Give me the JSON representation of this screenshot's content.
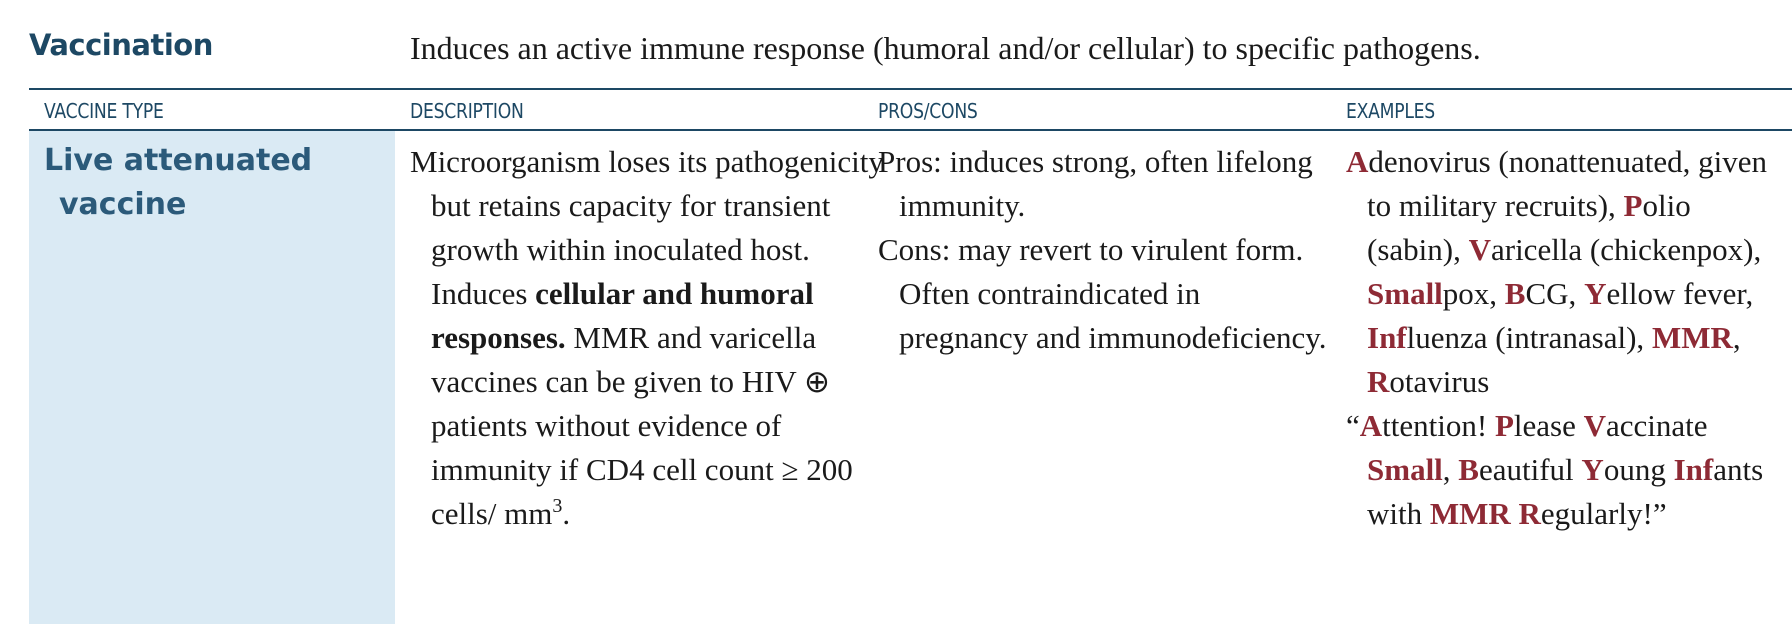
{
  "header": {
    "title": "Vaccination",
    "description": "Induces an active immune response (humoral and/or cellular) to specific pathogens."
  },
  "columns": {
    "type": "VACCINE TYPE",
    "description": "DESCRIPTION",
    "pros_cons": "PROS/CONS",
    "examples": "EXAMPLES"
  },
  "row": {
    "type": "Live attenuated vaccine",
    "description": {
      "part1": "Microorganism loses its pathogenicity but retains capacity for transient growth within inoculated host. Induces ",
      "bold": "cellular and humoral responses.",
      "part2": " MMR and varicella vaccines can be given to HIV ⊕ patients without evidence of immunity if CD4 cell count ≥ 200 cells/ mm",
      "sup": "3",
      "end": "."
    },
    "pros": "Pros: induces strong, often lifelong immunity.",
    "cons": "Cons: may revert to virulent form. Often contraindicated in pregnancy and immunodeficiency.",
    "examples": {
      "list": [
        {
          "t": "A",
          "r": true
        },
        {
          "t": "denovirus (nonattenuated, given to military recruits), ",
          "r": false
        },
        {
          "t": "P",
          "r": true
        },
        {
          "t": "olio (sabin), ",
          "r": false
        },
        {
          "t": "V",
          "r": true
        },
        {
          "t": "aricella (chickenpox), ",
          "r": false
        },
        {
          "t": "Small",
          "r": true
        },
        {
          "t": "pox, ",
          "r": false
        },
        {
          "t": "B",
          "r": true
        },
        {
          "t": "CG, ",
          "r": false
        },
        {
          "t": "Y",
          "r": true
        },
        {
          "t": "ellow fever, ",
          "r": false
        },
        {
          "t": "Inf",
          "r": true
        },
        {
          "t": "luenza (intranasal), ",
          "r": false
        },
        {
          "t": "MMR",
          "r": true
        },
        {
          "t": ", ",
          "r": false
        },
        {
          "t": "R",
          "r": true
        },
        {
          "t": "otavirus",
          "r": false
        }
      ],
      "mnemonic": [
        {
          "t": "“",
          "r": false
        },
        {
          "t": "A",
          "r": true
        },
        {
          "t": "ttention! ",
          "r": false
        },
        {
          "t": "P",
          "r": true
        },
        {
          "t": "lease ",
          "r": false
        },
        {
          "t": "V",
          "r": true
        },
        {
          "t": "accinate ",
          "r": false
        },
        {
          "t": "Small",
          "r": true
        },
        {
          "t": ", ",
          "r": false
        },
        {
          "t": "B",
          "r": true
        },
        {
          "t": "eautiful ",
          "r": false
        },
        {
          "t": "Y",
          "r": true
        },
        {
          "t": "oung ",
          "r": false
        },
        {
          "t": "Inf",
          "r": true
        },
        {
          "t": "ants with ",
          "r": false
        },
        {
          "t": "MMR",
          "r": true
        },
        {
          "t": " ",
          "r": false
        },
        {
          "t": "R",
          "r": true
        },
        {
          "t": "egularly!”",
          "r": false
        }
      ]
    },
    "colors": {
      "heading": "#1d4864",
      "type_cell_bg": "#daeaf4",
      "mnemonic_red": "#8e2a35"
    }
  }
}
